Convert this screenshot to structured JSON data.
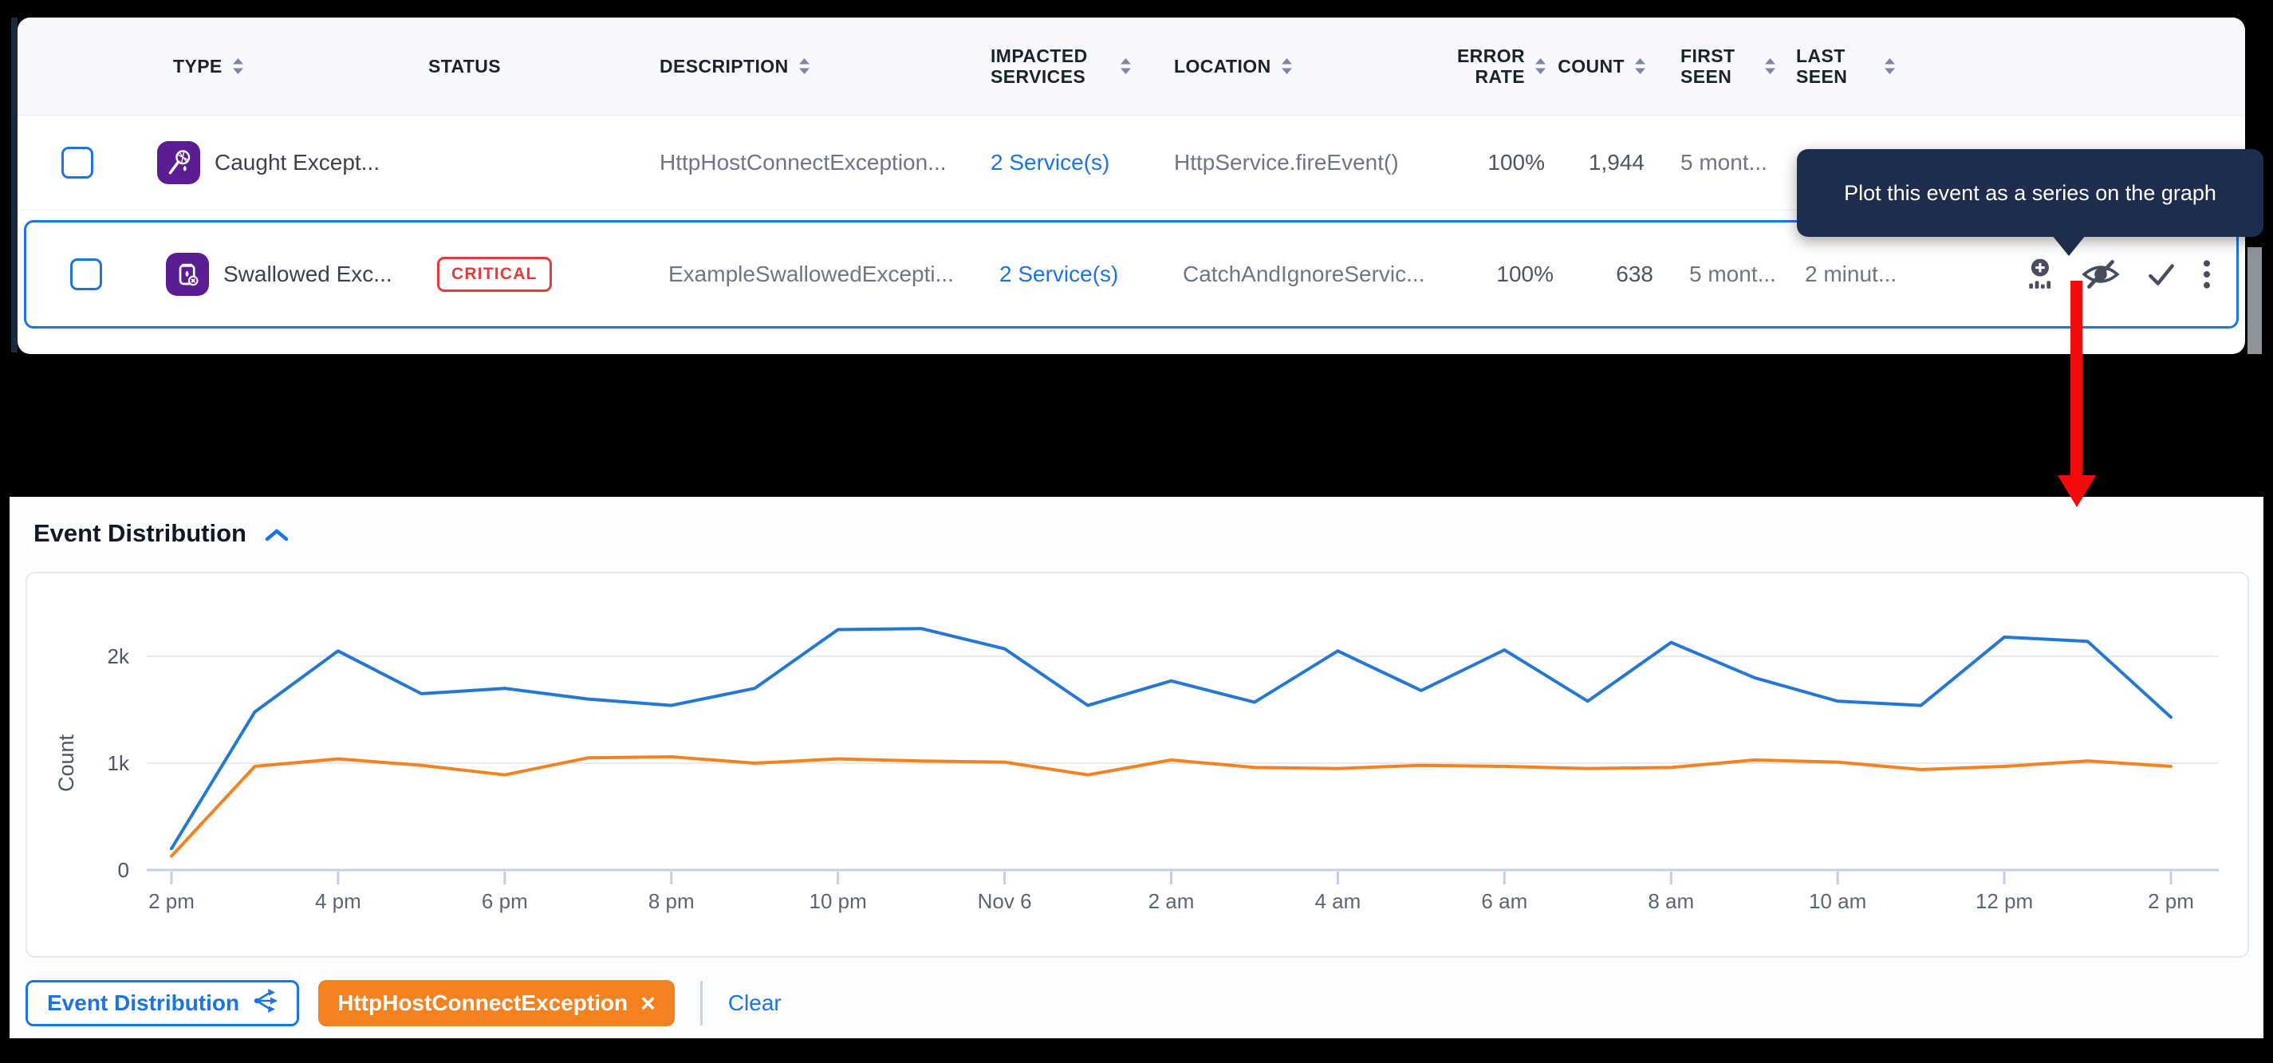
{
  "tooltip": {
    "text": "Plot this event as a series on the graph"
  },
  "table": {
    "headers": [
      {
        "label": "TYPE",
        "sortable": true
      },
      {
        "label": "STATUS",
        "sortable": false
      },
      {
        "label": "DESCRIPTION",
        "sortable": true
      },
      {
        "label": "IMPACTED SERVICES",
        "sortable": true
      },
      {
        "label": "LOCATION",
        "sortable": true
      },
      {
        "label": "ERROR RATE",
        "sortable": true
      },
      {
        "label": "COUNT",
        "sortable": true
      },
      {
        "label": "FIRST SEEN",
        "sortable": true
      },
      {
        "label": "LAST SEEN",
        "sortable": true
      }
    ],
    "rows": [
      {
        "type": "Caught Except...",
        "type_icon": "caught-exception-icon",
        "status": "",
        "description": "HttpHostConnectException...",
        "impacted_services": "2 Service(s)",
        "location": "HttpService.fireEvent()",
        "error_rate": "100%",
        "count": "1,944",
        "first_seen": "5 mont...",
        "last_seen": "",
        "selected": false,
        "show_actions": false
      },
      {
        "type": "Swallowed Exc...",
        "type_icon": "swallowed-exception-icon",
        "status": "CRITICAL",
        "description": "ExampleSwallowedExcepti...",
        "impacted_services": "2 Service(s)",
        "location": "CatchAndIgnoreServic...",
        "error_rate": "100%",
        "count": "638",
        "first_seen": "5 mont...",
        "last_seen": "2 minut...",
        "selected": true,
        "show_actions": true
      }
    ],
    "row_actions": [
      "plot-on-graph",
      "hide-event",
      "resolve-event",
      "more-options"
    ]
  },
  "chart_section": {
    "title": "Event Distribution",
    "clear_label": "Clear",
    "chips": [
      {
        "label": "Event Distribution",
        "style": "outline-blue",
        "icon": "fork-icon"
      },
      {
        "label": "HttpHostConnectException",
        "style": "solid-orange",
        "close_label": "×"
      }
    ]
  },
  "chart_data": {
    "type": "line",
    "title": "Event Distribution",
    "xlabel": "",
    "ylabel": "Count",
    "x_tick_labels": [
      "2 pm",
      "4 pm",
      "6 pm",
      "8 pm",
      "10 pm",
      "Nov 6",
      "2 am",
      "4 am",
      "6 am",
      "8 am",
      "10 am",
      "12 pm",
      "2 pm"
    ],
    "y_ticks": [
      {
        "label": "0",
        "value": 0
      },
      {
        "label": "1k",
        "value": 1000
      },
      {
        "label": "2k",
        "value": 2000
      }
    ],
    "ylim": [
      0,
      2400
    ],
    "grid": "horizontal",
    "legend_position": "chips-below",
    "series": [
      {
        "name": "Event Distribution",
        "color": "#2478d4",
        "values": [
          200,
          1480,
          2050,
          1650,
          1700,
          1600,
          1540,
          1700,
          2250,
          2260,
          2070,
          1540,
          1770,
          1570,
          2050,
          1680,
          2060,
          1580,
          2130,
          1800,
          1580,
          1540,
          2180,
          2140,
          1430
        ]
      },
      {
        "name": "HttpHostConnectException",
        "color": "#f5821f",
        "values": [
          130,
          970,
          1040,
          980,
          890,
          1050,
          1060,
          1000,
          1040,
          1020,
          1010,
          890,
          1030,
          960,
          950,
          980,
          970,
          950,
          960,
          1030,
          1010,
          940,
          970,
          1020,
          970
        ]
      }
    ]
  },
  "colors": {
    "accent_blue": "#1a73e8",
    "critical_red": "#e5393c",
    "type_icon_purple": "#5b1d91",
    "tooltip_bg": "#1e2c4e",
    "annotation_arrow_red": "#f30b0b",
    "chart_blue": "#2478d4",
    "chart_orange": "#f5821f",
    "axis_line": "#c3cfe8",
    "gridline": "#e8eaee"
  }
}
